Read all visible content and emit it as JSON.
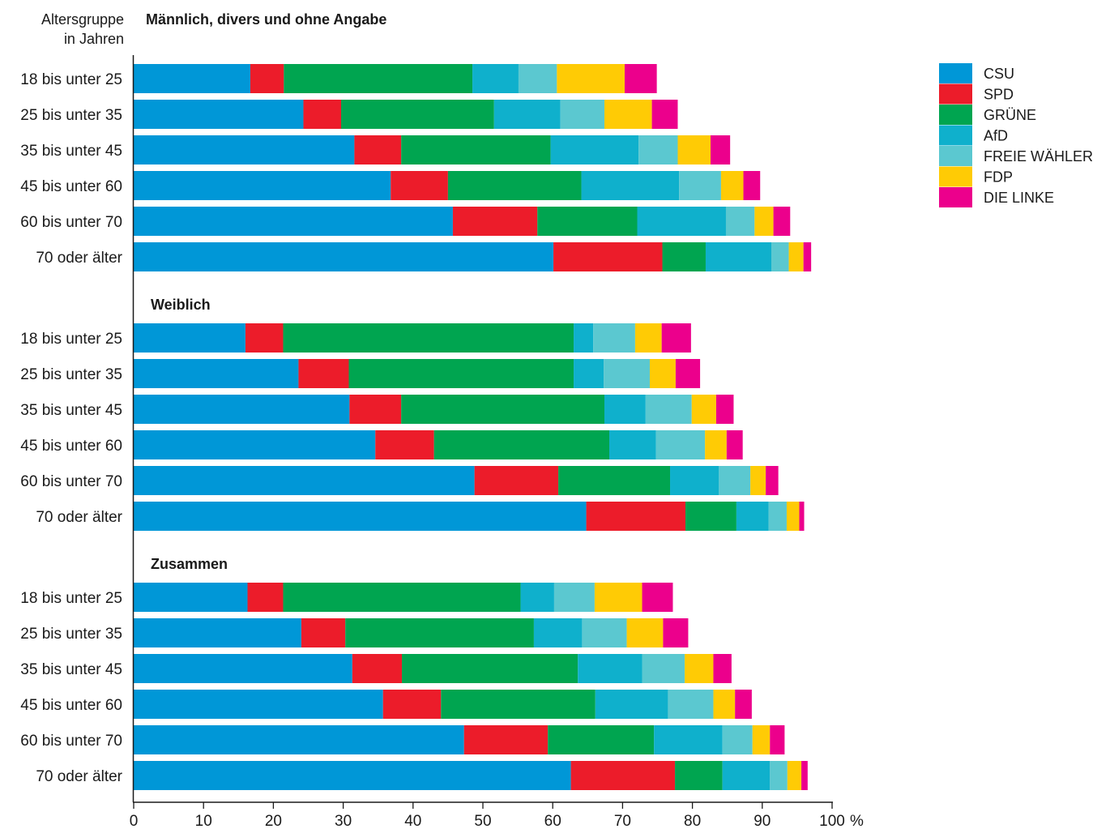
{
  "chart_data": {
    "type": "bar",
    "orientation": "horizontal",
    "stacked": true,
    "header_label_lines": [
      "Altersgruppe",
      "in Jahren"
    ],
    "unit": "%",
    "xlim": [
      0,
      100
    ],
    "xticks": [
      0,
      10,
      20,
      30,
      40,
      50,
      60,
      70,
      80,
      90,
      100
    ],
    "legend_position": "right",
    "parties": [
      {
        "name": "CSU",
        "color": "#0097d7"
      },
      {
        "name": "SPD",
        "color": "#ec1c2a"
      },
      {
        "name": "GRÜNE",
        "color": "#00a550"
      },
      {
        "name": "AfD",
        "color": "#0fb0cc"
      },
      {
        "name": "FREIE WÄHLER",
        "color": "#5bc8d0"
      },
      {
        "name": "FDP",
        "color": "#ffcb05"
      },
      {
        "name": "DIE LINKE",
        "color": "#ec008c"
      }
    ],
    "groups": [
      {
        "title": "Männlich, divers und ohne Angabe",
        "rows": [
          {
            "label": "18 bis unter 25",
            "values": [
              16.7,
              4.8,
              27.0,
              6.6,
              5.5,
              9.7,
              4.6
            ]
          },
          {
            "label": "25 bis unter 35",
            "values": [
              24.3,
              5.4,
              21.9,
              9.5,
              6.3,
              6.8,
              3.7
            ]
          },
          {
            "label": "35 bis unter 45",
            "values": [
              31.6,
              6.7,
              21.4,
              12.6,
              5.6,
              4.7,
              2.8
            ]
          },
          {
            "label": "45 bis unter 60",
            "values": [
              36.8,
              8.2,
              19.1,
              14.0,
              6.0,
              3.2,
              2.4
            ]
          },
          {
            "label": "60 bis unter 70",
            "values": [
              45.7,
              12.1,
              14.3,
              12.7,
              4.1,
              2.7,
              2.4
            ]
          },
          {
            "label": "70 oder älter",
            "values": [
              60.1,
              15.6,
              6.2,
              9.4,
              2.5,
              2.1,
              1.1
            ]
          }
        ]
      },
      {
        "title": "Weiblich",
        "rows": [
          {
            "label": "18 bis unter 25",
            "values": [
              16.0,
              5.4,
              41.6,
              2.8,
              6.0,
              3.8,
              4.2
            ]
          },
          {
            "label": "25 bis unter 35",
            "values": [
              23.6,
              7.2,
              32.2,
              4.3,
              6.6,
              3.7,
              3.5
            ]
          },
          {
            "label": "35 bis unter 45",
            "values": [
              30.9,
              7.4,
              29.1,
              5.9,
              6.6,
              3.5,
              2.5
            ]
          },
          {
            "label": "45 bis unter 60",
            "values": [
              34.6,
              8.4,
              25.1,
              6.7,
              7.0,
              3.1,
              2.3
            ]
          },
          {
            "label": "60 bis unter 70",
            "values": [
              48.8,
              12.0,
              16.0,
              7.0,
              4.5,
              2.2,
              1.8
            ]
          },
          {
            "label": "70 oder älter",
            "values": [
              64.8,
              14.2,
              7.3,
              4.6,
              2.6,
              1.8,
              0.7
            ]
          }
        ]
      },
      {
        "title": "Zusammen",
        "rows": [
          {
            "label": "18 bis unter 25",
            "values": [
              16.3,
              5.1,
              34.0,
              4.8,
              5.8,
              6.8,
              4.4
            ]
          },
          {
            "label": "25 bis unter 35",
            "values": [
              24.0,
              6.3,
              27.0,
              6.9,
              6.4,
              5.2,
              3.6
            ]
          },
          {
            "label": "35 bis unter 45",
            "values": [
              31.3,
              7.1,
              25.2,
              9.2,
              6.1,
              4.1,
              2.6
            ]
          },
          {
            "label": "45 bis unter 60",
            "values": [
              35.7,
              8.3,
              22.1,
              10.4,
              6.5,
              3.1,
              2.4
            ]
          },
          {
            "label": "60 bis unter 70",
            "values": [
              47.3,
              12.0,
              15.2,
              9.8,
              4.3,
              2.5,
              2.1
            ]
          },
          {
            "label": "70 oder älter",
            "values": [
              62.6,
              14.9,
              6.8,
              6.8,
              2.5,
              2.0,
              0.9
            ]
          }
        ]
      }
    ]
  }
}
